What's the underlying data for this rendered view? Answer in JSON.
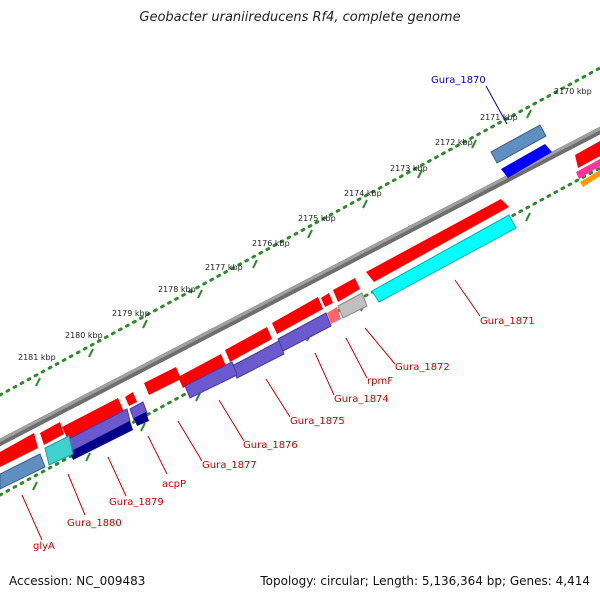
{
  "title": "Geobacter uraniireducens Rf4, complete genome",
  "accession_label": "Accession: NC_009483",
  "summary_label": "Topology: circular; Length: 5,136,364 bp; Genes: 4,414",
  "colors": {
    "backbone": "#8c8c8c",
    "tick_dots": "#2f8a2f",
    "forward_gene": "#ff0000",
    "reverse_gene": "#0000ff",
    "cds_band": "#6a5acd",
    "label_reverse": "#0000c8",
    "label_forward": "#cc0000"
  },
  "scale_labels": [
    "2170 kbp",
    "2171 kbp",
    "2172 kbp",
    "2173 kbp",
    "2174 kbp",
    "2175 kbp",
    "2176 kbp",
    "2177 kbp",
    "2178 kbp",
    "2179 kbp",
    "2180 kbp",
    "2181 kbp"
  ],
  "gene_labels": [
    "Gura_1870",
    "Gura_1871",
    "Gura_1872",
    "rpmF",
    "Gura_1874",
    "Gura_1875",
    "Gura_1876",
    "Gura_1877",
    "acpP",
    "Gura_1879",
    "Gura_1880",
    "glyA"
  ]
}
